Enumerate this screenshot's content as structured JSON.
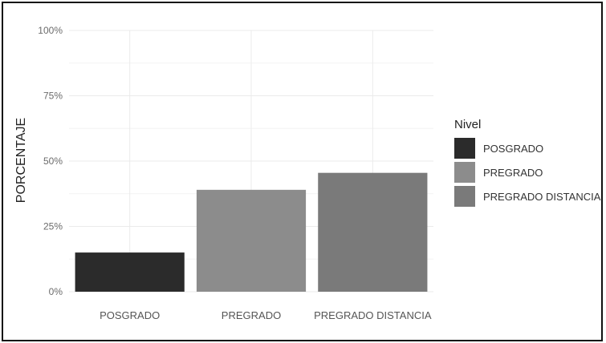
{
  "chart_data": {
    "type": "bar",
    "categories": [
      "POSGRADO",
      "PREGRADO",
      "PREGRADO DISTANCIA"
    ],
    "values": [
      15,
      39,
      45.5
    ],
    "value_unit": "%",
    "title": "",
    "xlabel": "",
    "ylabel": "PORCENTAJE",
    "ylim": [
      0,
      100
    ],
    "y_ticks": [
      0,
      25,
      50,
      75,
      100
    ],
    "y_tick_labels": [
      "0%",
      "25%",
      "50%",
      "75%",
      "100%"
    ],
    "grid": true,
    "legend": {
      "title": "Nivel",
      "position": "right",
      "entries": [
        "POSGRADO",
        "PREGRADO",
        "PREGRADO DISTANCIA"
      ]
    },
    "colors": [
      "#2b2b2b",
      "#8c8c8c",
      "#7a7a7a"
    ]
  }
}
